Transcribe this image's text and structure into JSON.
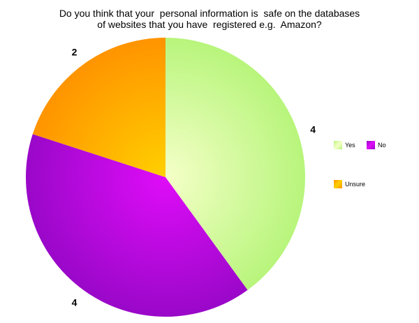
{
  "chart_data": {
    "type": "pie",
    "title_lines": [
      "Do you think that your  personal information is  safe on the databases",
      "of websites that you have  registered e.g.  Amazon?"
    ],
    "categories": [
      "Yes",
      "No",
      "Unsure"
    ],
    "values": [
      4,
      4,
      2
    ],
    "data_labels": [
      "4",
      "4",
      "2"
    ],
    "colors": {
      "Yes": {
        "outer": "#b8f57c",
        "inner": "#f5ffc8"
      },
      "No": {
        "outer": "#9a08c9",
        "inner": "#df0cf8"
      },
      "Unsure": {
        "outer": "#ff9400",
        "inner": "#ffd000"
      }
    },
    "start_angle_deg": 0,
    "direction": "clockwise",
    "legend_position": "right",
    "grid": false
  }
}
